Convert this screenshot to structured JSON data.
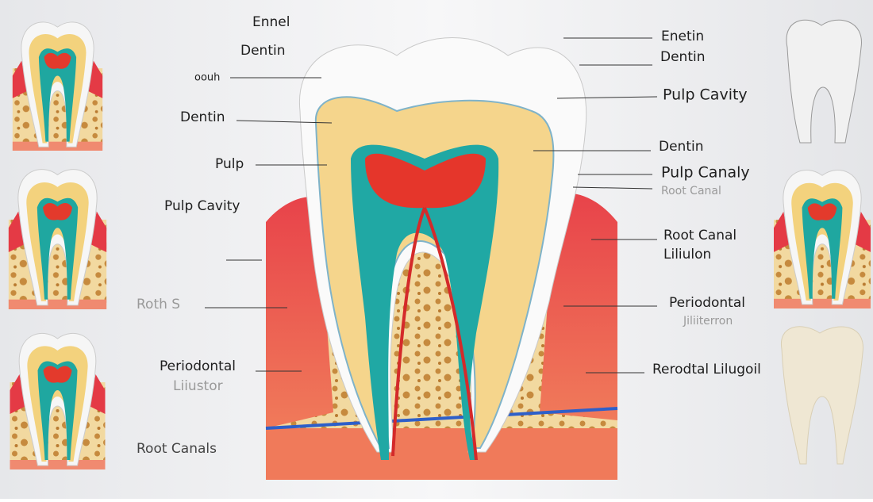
{
  "left_labels": [
    "Ennel",
    "Dentin",
    "oouh",
    "Dentin",
    "Pulp",
    "Pulp Cavity",
    "Roth S",
    "Periodontal",
    "Liiustor",
    "Root Canals"
  ],
  "right_labels": [
    "Enetin",
    "Dentin",
    "Pulp Cavity",
    "Dentin",
    "Pulp Canaly",
    "Root Canal",
    "Root Canal",
    "Liliulon",
    "Periodontal",
    "Jiliiterron",
    "Rerodtal Lilugoil"
  ]
}
